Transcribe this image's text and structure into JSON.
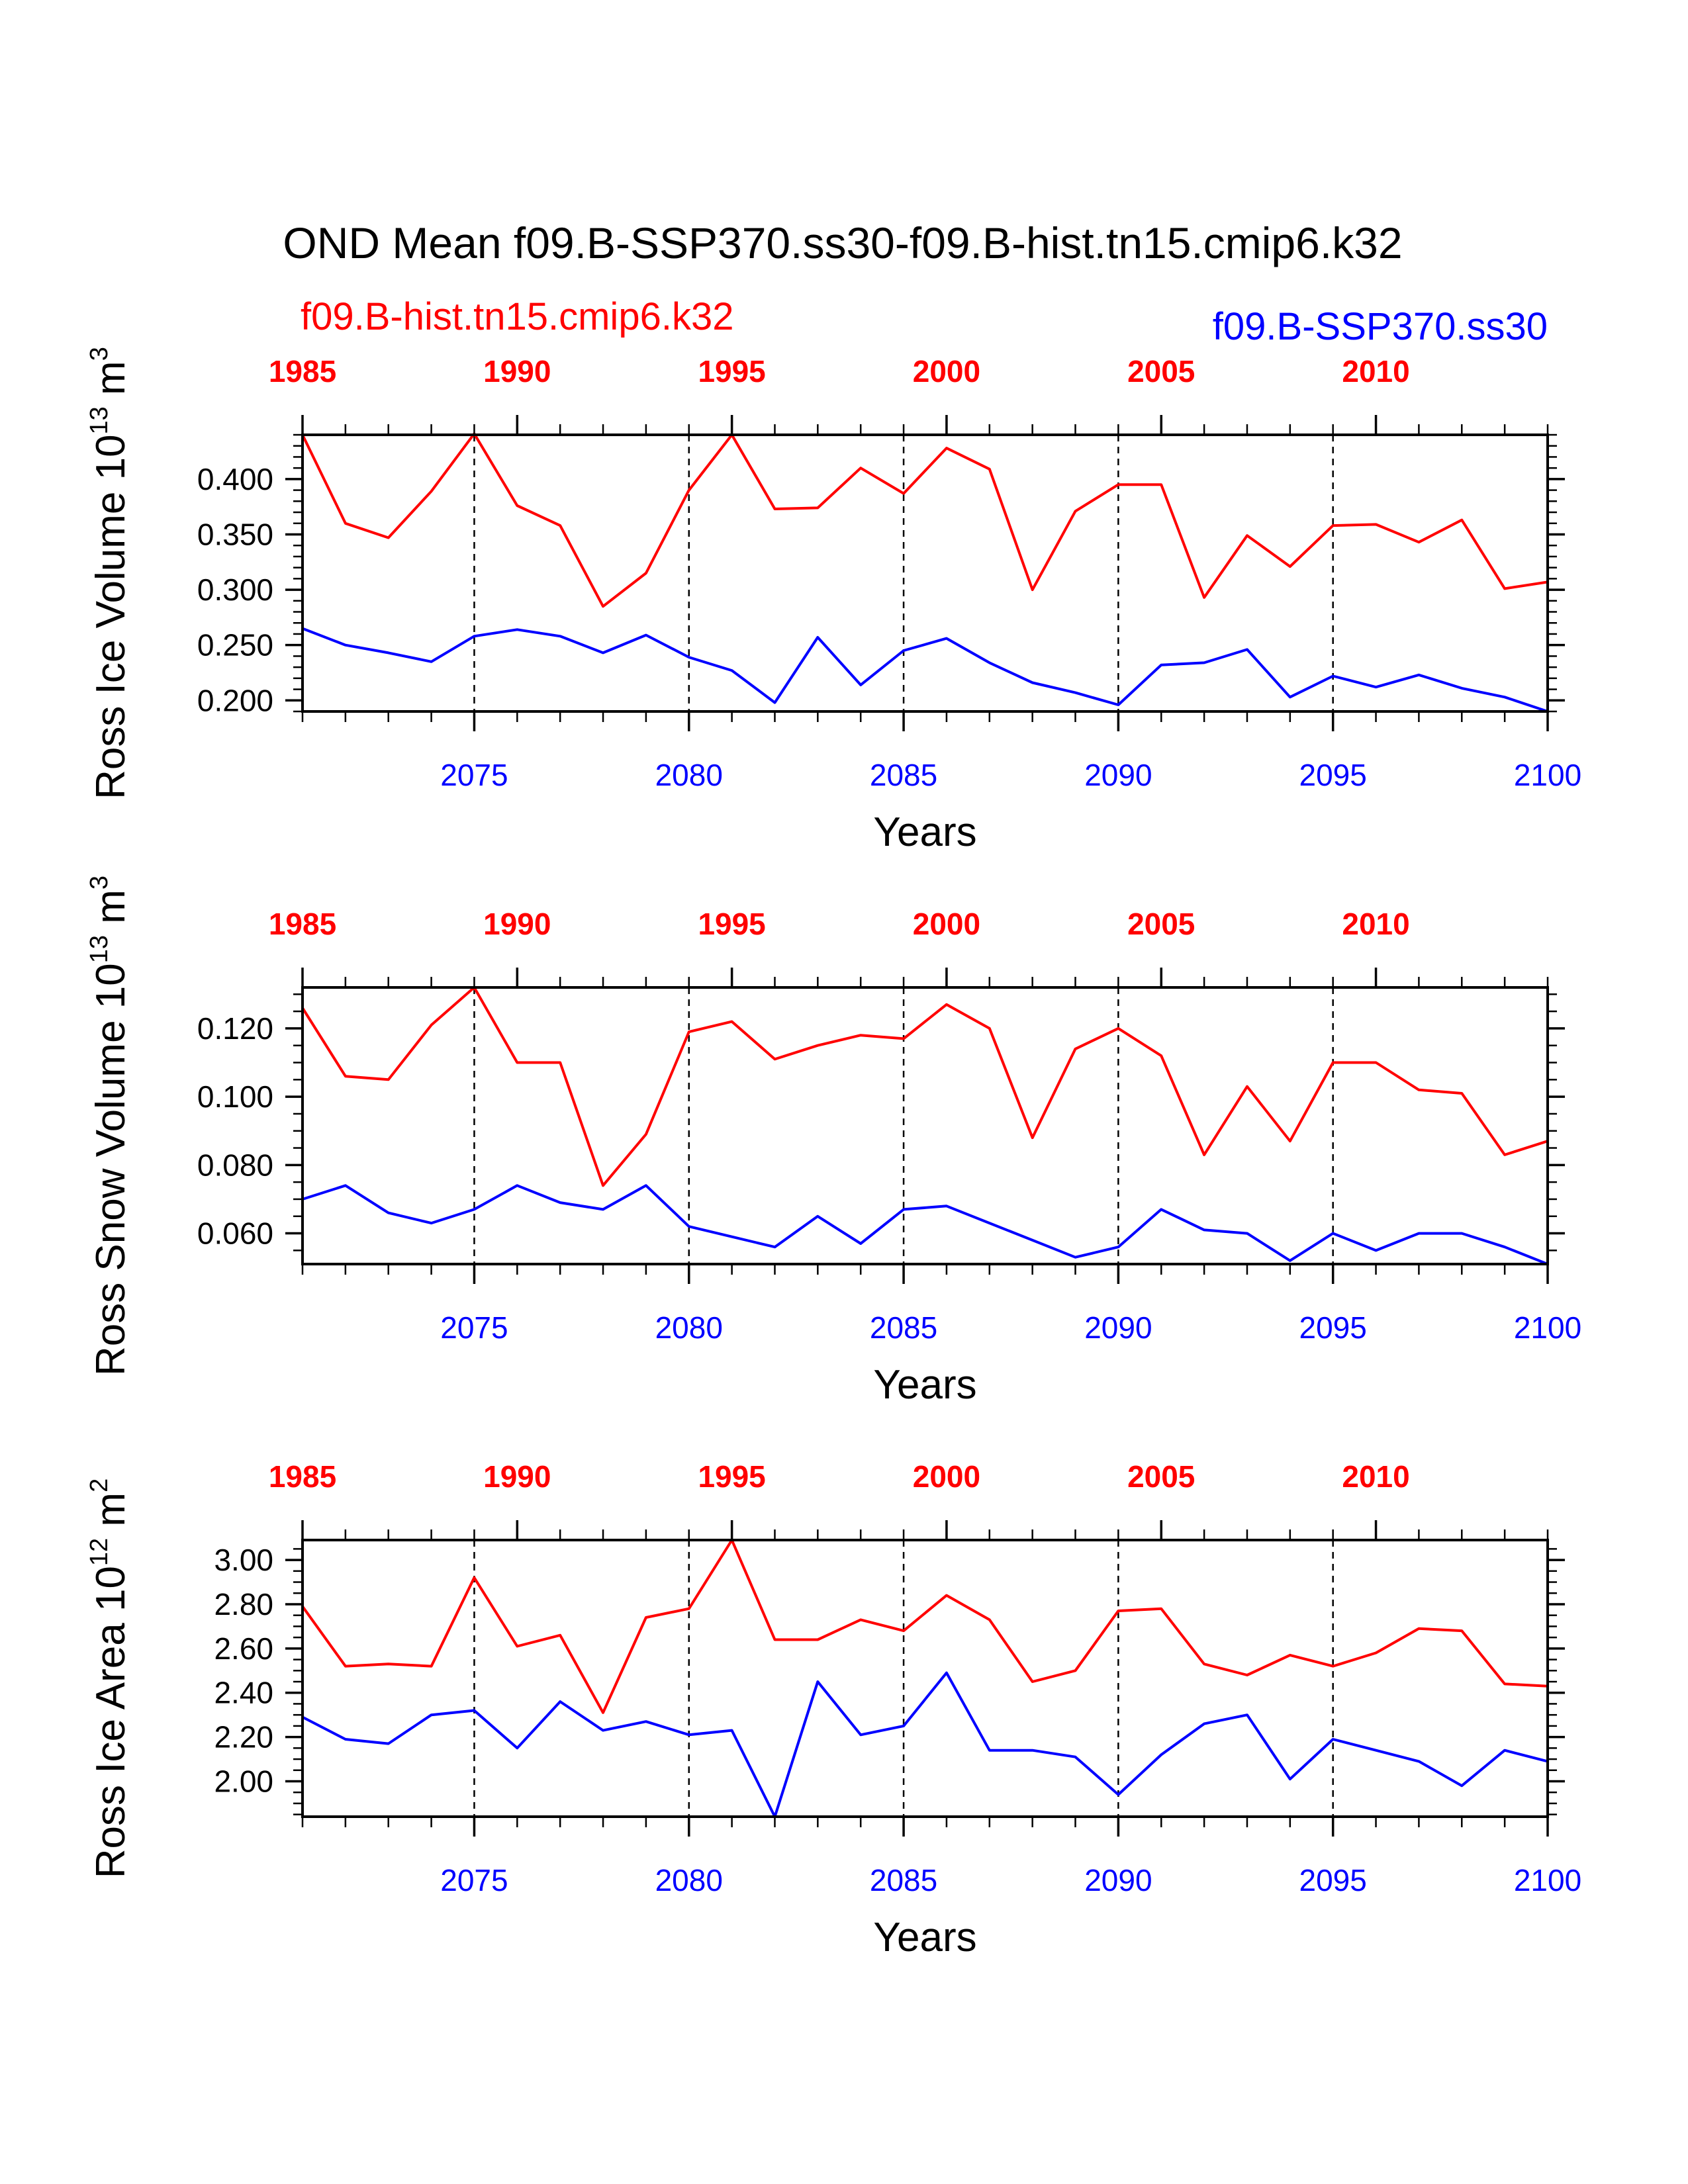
{
  "title": "OND Mean f09.B-SSP370.ss30-f09.B-hist.tn15.cmip6.k32",
  "legend": {
    "hist": "f09.B-hist.tn15.cmip6.k32",
    "ssp": "f09.B-SSP370.ss30"
  },
  "colors": {
    "hist": "#ff0000",
    "ssp": "#0000ff",
    "axis": "#000000"
  },
  "chart_data": [
    {
      "type": "line",
      "ylabel": "Ross Ice Volume 10",
      "ylabel_exp": "13",
      "ylabel_unit": " m",
      "ylabel_unit_exp": "3",
      "xlabel": "Years",
      "ylim": [
        0.19,
        0.44
      ],
      "yticks": [
        0.2,
        0.25,
        0.3,
        0.35,
        0.4
      ],
      "yticklabels": [
        "0.200",
        "0.250",
        "0.300",
        "0.350",
        "0.400"
      ],
      "yminor": 0.01,
      "x_bottom": {
        "range": [
          2071,
          2100
        ],
        "ticks": [
          2075,
          2080,
          2085,
          2090,
          2095,
          2100
        ],
        "labels": [
          "2075",
          "2080",
          "2085",
          "2090",
          "2095",
          "2100"
        ]
      },
      "x_top": {
        "range": [
          1985,
          2014
        ],
        "ticks": [
          1985,
          1990,
          1995,
          2000,
          2005,
          2010
        ],
        "labels": [
          "1985",
          "1990",
          "1995",
          "2000",
          "2005",
          "2010"
        ]
      },
      "gridlines_x": [
        2075,
        2080,
        2085,
        2090,
        2095
      ],
      "series": [
        {
          "name": "f09.B-hist.tn15.cmip6.k32",
          "x_axis": "top",
          "x_start": 1985,
          "values": [
            0.44,
            0.36,
            0.347,
            0.389,
            0.441,
            0.376,
            0.358,
            0.285,
            0.315,
            0.39,
            0.44,
            0.373,
            0.374,
            0.41,
            0.387,
            0.428,
            0.409,
            0.3,
            0.371,
            0.395,
            0.395,
            0.293,
            0.349,
            0.321,
            0.358,
            0.359,
            0.343,
            0.363,
            0.301,
            0.307
          ]
        },
        {
          "name": "f09.B-SSP370.ss30",
          "x_axis": "bottom",
          "x_start": 2071,
          "values": [
            0.265,
            0.25,
            0.243,
            0.235,
            0.258,
            0.264,
            0.258,
            0.243,
            0.259,
            0.239,
            0.227,
            0.198,
            0.257,
            0.214,
            0.245,
            0.256,
            0.234,
            0.216,
            0.207,
            0.196,
            0.232,
            0.234,
            0.246,
            0.203,
            0.222,
            0.212,
            0.223,
            0.211,
            0.203,
            0.19
          ]
        }
      ]
    },
    {
      "type": "line",
      "ylabel": "Ross Snow Volume 10",
      "ylabel_exp": "13",
      "ylabel_unit": " m",
      "ylabel_unit_exp": "3",
      "xlabel": "Years",
      "ylim": [
        0.051,
        0.132
      ],
      "yticks": [
        0.06,
        0.08,
        0.1,
        0.12
      ],
      "yticklabels": [
        "0.060",
        "0.080",
        "0.100",
        "0.120"
      ],
      "yminor": 0.005,
      "x_bottom": {
        "range": [
          2071,
          2100
        ],
        "ticks": [
          2075,
          2080,
          2085,
          2090,
          2095,
          2100
        ],
        "labels": [
          "2075",
          "2080",
          "2085",
          "2090",
          "2095",
          "2100"
        ]
      },
      "x_top": {
        "range": [
          1985,
          2014
        ],
        "ticks": [
          1985,
          1990,
          1995,
          2000,
          2005,
          2010
        ],
        "labels": [
          "1985",
          "1990",
          "1995",
          "2000",
          "2005",
          "2010"
        ]
      },
      "gridlines_x": [
        2075,
        2080,
        2085,
        2090,
        2095
      ],
      "series": [
        {
          "name": "f09.B-hist.tn15.cmip6.k32",
          "x_axis": "top",
          "x_start": 1985,
          "values": [
            0.126,
            0.106,
            0.105,
            0.121,
            0.132,
            0.11,
            0.11,
            0.074,
            0.089,
            0.119,
            0.122,
            0.111,
            0.115,
            0.118,
            0.117,
            0.127,
            0.12,
            0.088,
            0.114,
            0.12,
            0.112,
            0.083,
            0.103,
            0.087,
            0.11,
            0.11,
            0.102,
            0.101,
            0.083,
            0.087
          ]
        },
        {
          "name": "f09.B-SSP370.ss30",
          "x_axis": "bottom",
          "x_start": 2071,
          "values": [
            0.07,
            0.074,
            0.066,
            0.063,
            0.067,
            0.074,
            0.069,
            0.067,
            0.074,
            0.062,
            0.059,
            0.056,
            0.065,
            0.057,
            0.067,
            0.068,
            0.063,
            0.058,
            0.053,
            0.056,
            0.067,
            0.061,
            0.06,
            0.052,
            0.06,
            0.055,
            0.06,
            0.06,
            0.056,
            0.051
          ]
        }
      ]
    },
    {
      "type": "line",
      "ylabel": "Ross Ice Area 10",
      "ylabel_exp": "12",
      "ylabel_unit": " m",
      "ylabel_unit_exp": "2",
      "xlabel": "Years",
      "ylim": [
        1.84,
        3.09
      ],
      "yticks": [
        2.0,
        2.2,
        2.4,
        2.6,
        2.8,
        3.0
      ],
      "yticklabels": [
        "2.00",
        "2.20",
        "2.40",
        "2.60",
        "2.80",
        "3.00"
      ],
      "yminor": 0.05,
      "x_bottom": {
        "range": [
          2071,
          2100
        ],
        "ticks": [
          2075,
          2080,
          2085,
          2090,
          2095,
          2100
        ],
        "labels": [
          "2075",
          "2080",
          "2085",
          "2090",
          "2095",
          "2100"
        ]
      },
      "x_top": {
        "range": [
          1985,
          2014
        ],
        "ticks": [
          1985,
          1990,
          1995,
          2000,
          2005,
          2010
        ],
        "labels": [
          "1985",
          "1990",
          "1995",
          "2000",
          "2005",
          "2010"
        ]
      },
      "gridlines_x": [
        2075,
        2080,
        2085,
        2090,
        2095
      ],
      "series": [
        {
          "name": "f09.B-hist.tn15.cmip6.k32",
          "x_axis": "top",
          "x_start": 1985,
          "values": [
            2.79,
            2.52,
            2.53,
            2.52,
            2.92,
            2.61,
            2.66,
            2.31,
            2.74,
            2.78,
            3.09,
            2.64,
            2.64,
            2.73,
            2.68,
            2.84,
            2.73,
            2.45,
            2.5,
            2.77,
            2.78,
            2.53,
            2.48,
            2.57,
            2.52,
            2.58,
            2.69,
            2.68,
            2.44,
            2.43
          ]
        },
        {
          "name": "f09.B-SSP370.ss30",
          "x_axis": "bottom",
          "x_start": 2071,
          "values": [
            2.29,
            2.19,
            2.17,
            2.3,
            2.32,
            2.15,
            2.36,
            2.23,
            2.27,
            2.21,
            2.23,
            1.84,
            2.45,
            2.21,
            2.25,
            2.49,
            2.14,
            2.14,
            2.11,
            1.94,
            2.12,
            2.26,
            2.3,
            2.01,
            2.19,
            2.14,
            2.09,
            1.98,
            2.14,
            2.09
          ]
        }
      ]
    }
  ]
}
